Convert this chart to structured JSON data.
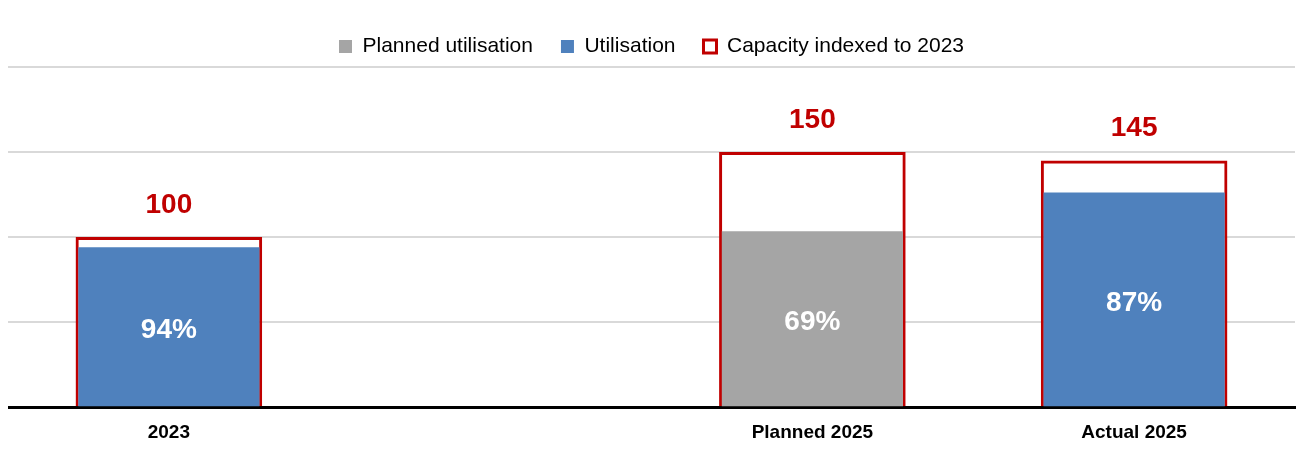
{
  "chart_data": {
    "type": "bar",
    "categories": [
      "2023",
      null,
      "Planned 2025",
      "Actual 2025"
    ],
    "series": [
      {
        "name": "Capacity indexed to 2023",
        "color": "#c00000",
        "values": [
          100,
          null,
          150,
          145
        ],
        "value_labels": [
          "100",
          null,
          "150",
          "145"
        ]
      },
      {
        "name": "Planned utilisation",
        "color": "#a5a5a5",
        "values": [
          null,
          null,
          103.5,
          null
        ]
      },
      {
        "name": "Utilisation",
        "color": "#4f81bd",
        "values": [
          94,
          null,
          null,
          126.2
        ]
      }
    ],
    "annotations": [
      "94%",
      "69%",
      "87%"
    ],
    "ylim": [
      0,
      200
    ],
    "yticks": [
      {
        "value": 0,
        "label": null
      },
      {
        "value": 50,
        "label": null
      },
      {
        "value": 100,
        "label": null
      },
      {
        "value": 150,
        "label": null
      },
      {
        "value": 200,
        "label": null
      }
    ],
    "tick_labels": "x",
    "grid": "y",
    "legend": "top"
  }
}
